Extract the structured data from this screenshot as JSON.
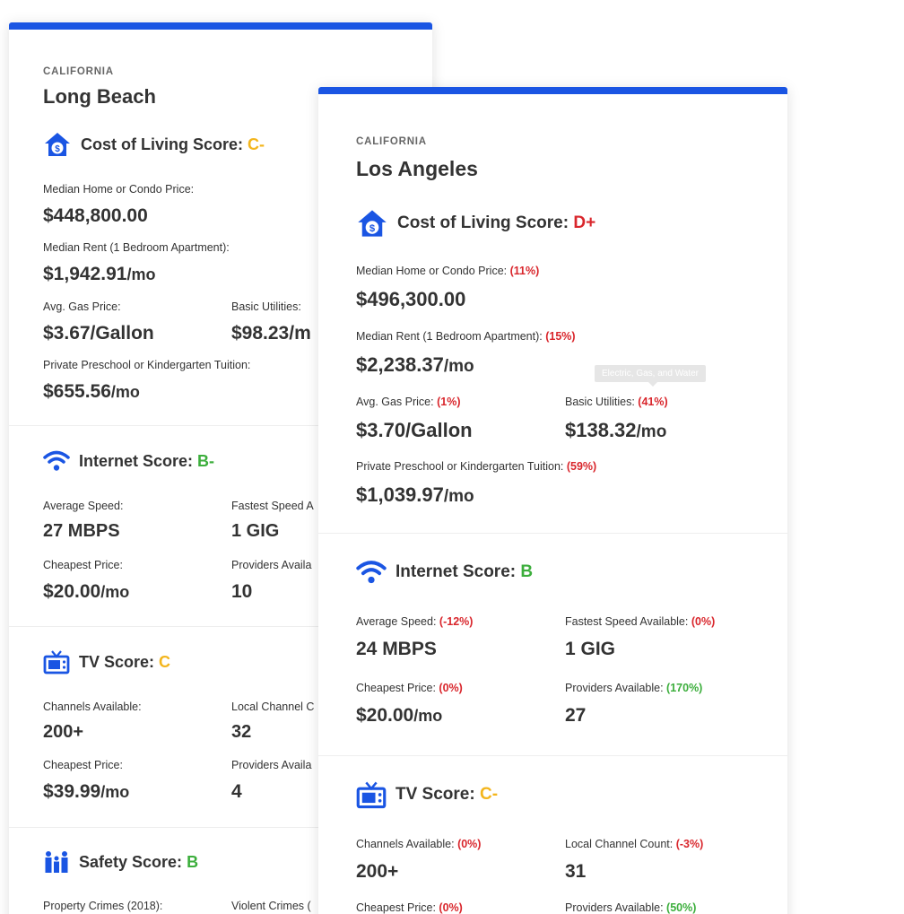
{
  "colors": {
    "accent": "#1a55e3",
    "grade_yellow": "#f3b51c",
    "grade_red": "#d9262c",
    "grade_green": "#3cae3c"
  },
  "long_beach": {
    "state": "CALIFORNIA",
    "city": "Long Beach",
    "cost": {
      "title": "Cost of Living Score:",
      "grade": "C-",
      "home_label": "Median Home or Condo Price:",
      "home_value": "$448,800.00",
      "rent_label": "Median Rent (1 Bedroom Apartment):",
      "rent_value": "$1,942.91",
      "rent_unit": "/mo",
      "gas_label": "Avg. Gas Price:",
      "gas_value": "$3.67/Gallon",
      "util_label": "Basic Utilities:",
      "util_value": "$98.23/m",
      "school_label": "Private Preschool or Kindergarten Tuition:",
      "school_value": "$655.56",
      "school_unit": "/mo"
    },
    "internet": {
      "title": "Internet Score:",
      "grade": "B-",
      "speed_label": "Average Speed:",
      "speed_value": "27 MBPS",
      "fastest_label": "Fastest Speed A",
      "fastest_value": "1 GIG",
      "cheap_label": "Cheapest Price:",
      "cheap_value": "$20.00",
      "cheap_unit": "/mo",
      "prov_label": "Providers Availa",
      "prov_value": "10"
    },
    "tv": {
      "title": "TV Score:",
      "grade": "C",
      "chan_label": "Channels Available:",
      "chan_value": "200+",
      "local_label": "Local Channel C",
      "local_value": "32",
      "cheap_label": "Cheapest Price:",
      "cheap_value": "$39.99",
      "cheap_unit": "/mo",
      "prov_label": "Providers Availa",
      "prov_value": "4"
    },
    "safety": {
      "title": "Safety Score:",
      "grade": "B",
      "prop_label": "Property Crimes (2018):",
      "viol_label": "Violent Crimes ("
    }
  },
  "los_angeles": {
    "state": "CALIFORNIA",
    "city": "Los Angeles",
    "cost": {
      "title": "Cost of Living Score:",
      "grade": "D+",
      "home_label": "Median Home or Condo Price:",
      "home_pct": "(11%)",
      "home_value": "$496,300.00",
      "rent_label": "Median Rent (1 Bedroom Apartment):",
      "rent_pct": "(15%)",
      "rent_value": "$2,238.37",
      "rent_unit": "/mo",
      "tooltip": "Electric, Gas, and Water",
      "gas_label": "Avg. Gas Price:",
      "gas_pct": "(1%)",
      "gas_value": "$3.70/Gallon",
      "util_label": "Basic Utilities:",
      "util_pct": "(41%)",
      "util_value": "$138.32",
      "util_unit": "/mo",
      "school_label": "Private Preschool or Kindergarten Tuition:",
      "school_pct": "(59%)",
      "school_value": "$1,039.97",
      "school_unit": "/mo"
    },
    "internet": {
      "title": "Internet Score:",
      "grade": "B",
      "speed_label": "Average Speed:",
      "speed_pct": "(-12%)",
      "speed_value": "24 MBPS",
      "fastest_label": "Fastest Speed Available:",
      "fastest_pct": "(0%)",
      "fastest_value": "1 GIG",
      "cheap_label": "Cheapest Price:",
      "cheap_pct": "(0%)",
      "cheap_value": "$20.00",
      "cheap_unit": "/mo",
      "prov_label": "Providers Available:",
      "prov_pct": "(170%)",
      "prov_value": "27"
    },
    "tv": {
      "title": "TV Score:",
      "grade": "C-",
      "chan_label": "Channels Available:",
      "chan_pct": "(0%)",
      "chan_value": "200+",
      "local_label": "Local Channel Count:",
      "local_pct": "(-3%)",
      "local_value": "31",
      "cheap_label": "Cheapest Price:",
      "cheap_pct": "(0%)",
      "prov_label": "Providers Available:",
      "prov_pct": "(50%)"
    }
  }
}
